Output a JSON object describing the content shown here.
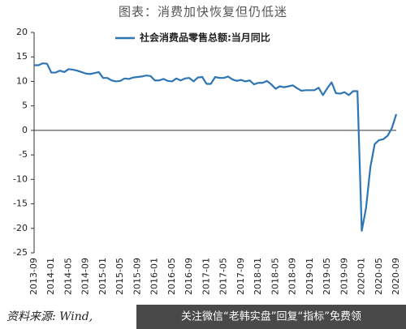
{
  "chart_data": {
    "type": "line",
    "title": "图表：消费加快恢复但仍低迷",
    "source": "资料来源: Wind,",
    "watermark": "关注微信“老韩实盘”回复“指标”免费领",
    "categories": [
      "2013-09",
      null,
      null,
      null,
      "2014-01",
      null,
      null,
      null,
      "2014-05",
      null,
      null,
      null,
      "2014-09",
      null,
      null,
      null,
      "2015-01",
      null,
      null,
      null,
      "2015-05",
      null,
      null,
      null,
      "2015-09",
      null,
      null,
      null,
      "2016-01",
      null,
      null,
      null,
      "2016-05",
      null,
      null,
      null,
      "2016-09",
      null,
      null,
      null,
      "2017-01",
      null,
      null,
      null,
      "2017-05",
      null,
      null,
      null,
      "2017-09",
      null,
      null,
      null,
      "2018-01",
      null,
      null,
      null,
      "2018-05",
      null,
      null,
      null,
      "2018-09",
      null,
      null,
      null,
      "2019-01",
      null,
      null,
      null,
      "2019-05",
      null,
      null,
      null,
      "2019-09",
      null,
      null,
      null,
      "2020-01",
      null,
      null,
      null,
      "2020-05",
      null,
      null,
      null,
      "2020-09"
    ],
    "series": [
      {
        "name": "社会消费品零售总额:当月同比",
        "color": "#2e75b6",
        "values": [
          13.3,
          13.3,
          13.7,
          13.6,
          11.8,
          11.8,
          12.2,
          11.9,
          12.5,
          12.4,
          12.2,
          11.9,
          11.6,
          11.5,
          11.7,
          11.9,
          10.7,
          10.7,
          10.2,
          10.0,
          10.1,
          10.6,
          10.5,
          10.8,
          10.9,
          11.0,
          11.2,
          11.1,
          10.2,
          10.2,
          10.5,
          10.1,
          10.0,
          10.6,
          10.2,
          10.6,
          10.7,
          10.0,
          10.8,
          10.9,
          9.5,
          9.5,
          10.9,
          10.7,
          10.7,
          11.0,
          10.4,
          10.1,
          10.3,
          10.0,
          10.2,
          9.4,
          9.7,
          9.7,
          10.1,
          9.4,
          8.5,
          9.0,
          8.8,
          9.0,
          9.2,
          8.6,
          8.1,
          8.2,
          8.2,
          8.2,
          8.7,
          7.2,
          8.6,
          9.8,
          7.6,
          7.5,
          7.8,
          7.2,
          8.0,
          8.0,
          -20.5,
          -15.8,
          -7.5,
          -2.8,
          -2.0,
          -1.8,
          -1.1,
          0.5,
          3.3
        ]
      }
    ],
    "ylim": [
      -25,
      20
    ],
    "yticks": [
      -25,
      -20,
      -15,
      -10,
      -5,
      0,
      5,
      10,
      15,
      20
    ],
    "grid": false,
    "legend": "top"
  }
}
